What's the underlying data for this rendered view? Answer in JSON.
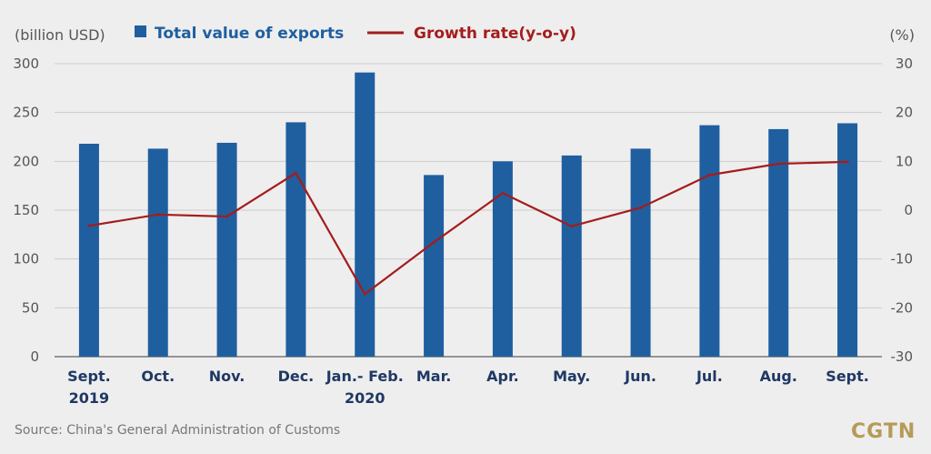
{
  "chart_data": {
    "type": "bar",
    "categories": [
      "Sept.\n2019",
      "Oct.",
      "Nov.",
      "Dec.",
      "Jan.- Feb.\n2020",
      "Mar.",
      "Apr.",
      "May.",
      "Jun.",
      "Jul.",
      "Aug.",
      "Sept."
    ],
    "series": [
      {
        "name": "Total value of exports",
        "type": "bar",
        "axis": "left",
        "color": "#1f5fa0",
        "values": [
          218,
          213,
          219,
          240,
          291,
          186,
          200,
          206,
          213,
          237,
          233,
          239
        ]
      },
      {
        "name": "Growth rate(y-o-y)",
        "type": "line",
        "axis": "right",
        "color": "#a51c1c",
        "values": [
          -3.2,
          -0.9,
          -1.3,
          7.6,
          -17.2,
          -6.6,
          3.5,
          -3.3,
          0.5,
          7.2,
          9.5,
          9.9
        ]
      }
    ],
    "left_axis": {
      "label": "(billion USD)",
      "ylim": [
        0,
        300
      ],
      "ticks": [
        0,
        50,
        100,
        150,
        200,
        250,
        300
      ]
    },
    "right_axis": {
      "label": "(%)",
      "ylim": [
        -30,
        30
      ],
      "ticks": [
        -30,
        -20,
        -10,
        0,
        10,
        20,
        30
      ]
    },
    "grid": true,
    "legend_position": "top"
  },
  "source": "Source: China's General Administration of Customs",
  "brand": "CGTN"
}
